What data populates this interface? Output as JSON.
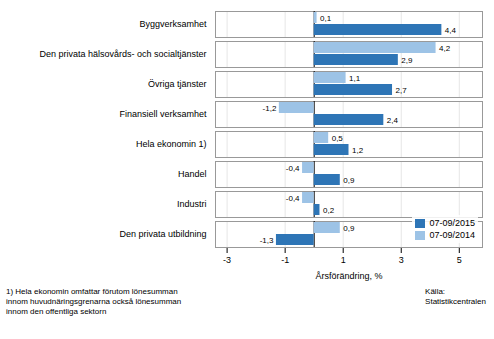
{
  "chart_data": {
    "type": "bar",
    "orientation": "horizontal",
    "categories": [
      "Byggverksamhet",
      "Den privata hälsovårds- och socialtjänster",
      "Övriga tjänster",
      "Finansiell verksamhet",
      "Hela ekonomin 1)",
      "Handel",
      "Industri",
      "Den privata utbildning"
    ],
    "series": [
      {
        "name": "07-09/2015",
        "color": "#2e75b6",
        "values": [
          4.4,
          2.9,
          2.7,
          2.4,
          1.2,
          0.9,
          0.2,
          -1.3
        ],
        "value_labels": [
          "4,4",
          "2,9",
          "2,7",
          "2,4",
          "1,2",
          "0,9",
          "0,2",
          "-1,3"
        ]
      },
      {
        "name": "07-09/2014",
        "color": "#9dc3e6",
        "values": [
          0.1,
          4.2,
          1.1,
          -1.2,
          0.5,
          -0.4,
          -0.4,
          0.9
        ],
        "value_labels": [
          "0,1",
          "4,2",
          "1,1",
          "-1,2",
          "0,5",
          "-0,4",
          "-0,4",
          "0,9"
        ]
      }
    ],
    "xlabel": "Årsförändring, %",
    "xlim": [
      -3.4,
      5.8
    ],
    "xticks": [
      -3,
      -1,
      1,
      3,
      5
    ],
    "grid": true,
    "legend": "lower right",
    "data_labels": true,
    "annotations": [
      "1) Hela ekonomin omfattar förutom lönesumman\ninnom huvudnäringsgrenarna också lönesumman\ninnom den offentliga sektorn",
      "Källa:\nStatistikcentralen"
    ]
  }
}
